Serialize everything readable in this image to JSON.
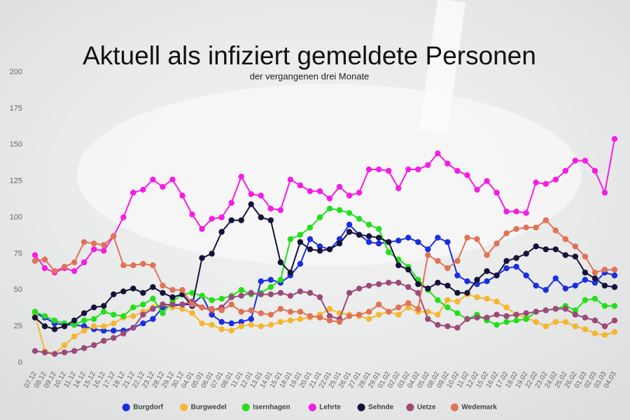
{
  "chart_data": {
    "type": "line",
    "title": "Aktuell als infiziert gemeldete Personen",
    "subtitle": "der vergangenen drei Monate",
    "categories": [
      "07.12",
      "08.12",
      "09.12",
      "10.12",
      "11.12",
      "14.12",
      "15.12",
      "16.12",
      "17.12",
      "18.12",
      "21.12",
      "22.12",
      "23.12",
      "28.12",
      "29.12",
      "30.12",
      "04.01",
      "05.01",
      "06.01",
      "07.01",
      "08.01",
      "11.01",
      "12.01",
      "13.01",
      "14.01",
      "15.01",
      "18.01",
      "19.01",
      "20.01",
      "21.01",
      "22.01",
      "25.01",
      "26.01",
      "27.01",
      "28.01",
      "29.01",
      "01.02",
      "02.02",
      "03.02",
      "04.02",
      "05.02",
      "08.02",
      "09.02",
      "10.02",
      "11.02",
      "12.02",
      "15.02",
      "16.02",
      "17.02",
      "18.02",
      "19.02",
      "22.02",
      "23.02",
      "24.02",
      "25.02",
      "26.02",
      "01.03",
      "02.03",
      "03.03",
      "04.03"
    ],
    "series": [
      {
        "name": "Burgdorf",
        "color": "#1a2fe0",
        "values": [
          34,
          31,
          27,
          26,
          26,
          25,
          23,
          22,
          22,
          22,
          24,
          27,
          30,
          38,
          39,
          40,
          40,
          46,
          33,
          28,
          27,
          28,
          30,
          56,
          57,
          55,
          60,
          68,
          85,
          80,
          78,
          85,
          95,
          88,
          83,
          82,
          83,
          84,
          86,
          83,
          78,
          86,
          83,
          60,
          56,
          54,
          56,
          60,
          65,
          66,
          60,
          53,
          50,
          58,
          51,
          53,
          57,
          55,
          62,
          60
        ]
      },
      {
        "name": "Burgwedel",
        "color": "#f5b731",
        "values": [
          33,
          8,
          6,
          12,
          18,
          22,
          25,
          25,
          27,
          31,
          32,
          35,
          38,
          40,
          38,
          37,
          34,
          27,
          26,
          23,
          22,
          25,
          26,
          25,
          26,
          28,
          29,
          30,
          31,
          33,
          37,
          34,
          33,
          32,
          30,
          33,
          35,
          33,
          38,
          35,
          35,
          33,
          43,
          42,
          47,
          45,
          44,
          42,
          38,
          33,
          31,
          28,
          25,
          28,
          28,
          25,
          23,
          20,
          19,
          21
        ]
      },
      {
        "name": "Isernhagen",
        "color": "#22e01a",
        "values": [
          35,
          32,
          29,
          27,
          26,
          29,
          30,
          35,
          33,
          32,
          38,
          40,
          44,
          34,
          42,
          47,
          48,
          46,
          43,
          44,
          46,
          50,
          47,
          48,
          52,
          57,
          85,
          88,
          93,
          100,
          106,
          105,
          103,
          99,
          95,
          92,
          76,
          71,
          66,
          57,
          50,
          43,
          38,
          34,
          30,
          33,
          29,
          26,
          28,
          29,
          30,
          35,
          36,
          37,
          39,
          36,
          43,
          44,
          39,
          39
        ]
      },
      {
        "name": "Lehrte",
        "color": "#f51ce6",
        "values": [
          74,
          65,
          62,
          65,
          63,
          69,
          78,
          77,
          87,
          100,
          117,
          119,
          126,
          121,
          126,
          115,
          102,
          92,
          99,
          100,
          110,
          128,
          116,
          115,
          106,
          105,
          126,
          122,
          118,
          118,
          113,
          121,
          115,
          117,
          133,
          133,
          132,
          120,
          133,
          133,
          136,
          144,
          137,
          132,
          129,
          119,
          125,
          117,
          104,
          104,
          103,
          124,
          123,
          126,
          132,
          139,
          139,
          132,
          117,
          154
        ]
      },
      {
        "name": "Sehnde",
        "color": "#15123a",
        "values": [
          31,
          25,
          23,
          25,
          29,
          34,
          38,
          39,
          47,
          49,
          51,
          48,
          52,
          48,
          45,
          47,
          39,
          72,
          75,
          90,
          98,
          98,
          109,
          100,
          98,
          69,
          62,
          83,
          78,
          77,
          78,
          82,
          90,
          88,
          87,
          86,
          83,
          67,
          64,
          54,
          51,
          55,
          53,
          48,
          48,
          57,
          63,
          60,
          70,
          72,
          75,
          80,
          78,
          78,
          74,
          73,
          62,
          58,
          53,
          52
        ]
      },
      {
        "name": "Uetze",
        "color": "#9b4a7a",
        "values": [
          8,
          7,
          6,
          7,
          8,
          10,
          12,
          15,
          17,
          20,
          24,
          33,
          37,
          40,
          40,
          40,
          42,
          38,
          36,
          38,
          45,
          46,
          48,
          47,
          47,
          48,
          46,
          49,
          48,
          45,
          32,
          30,
          48,
          51,
          53,
          54,
          55,
          55,
          52,
          48,
          30,
          26,
          25,
          24,
          30,
          31,
          31,
          33,
          32,
          33,
          34,
          35,
          36,
          37,
          37,
          33,
          31,
          29,
          25,
          29
        ]
      },
      {
        "name": "Wedemark",
        "color": "#e07256",
        "values": [
          70,
          71,
          63,
          66,
          69,
          83,
          82,
          81,
          87,
          67,
          67,
          68,
          67,
          53,
          50,
          50,
          40,
          38,
          37,
          36,
          40,
          35,
          36,
          34,
          33,
          37,
          35,
          35,
          32,
          31,
          29,
          28,
          32,
          33,
          35,
          40,
          35,
          38,
          41,
          37,
          74,
          70,
          65,
          70,
          86,
          85,
          74,
          82,
          89,
          92,
          93,
          93,
          98,
          91,
          85,
          80,
          73,
          62,
          64,
          64
        ]
      }
    ],
    "ylim": [
      0,
      200
    ],
    "yticks": [
      0,
      25,
      50,
      75,
      100,
      125,
      150,
      175,
      200
    ],
    "grid": false,
    "legend": "bottom"
  }
}
